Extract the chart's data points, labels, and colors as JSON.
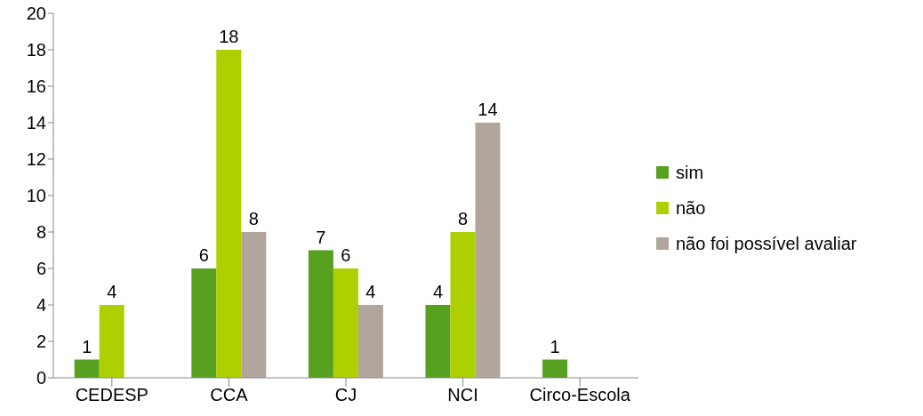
{
  "chart_data": {
    "type": "bar",
    "categories": [
      "CEDESP",
      "CCA",
      "CJ",
      "NCI",
      "Circo-Escola"
    ],
    "series": [
      {
        "name": "sim",
        "color": "#57a020",
        "values": [
          1,
          6,
          7,
          4,
          1
        ]
      },
      {
        "name": "não",
        "color": "#aecf00",
        "values": [
          4,
          18,
          6,
          8,
          null
        ]
      },
      {
        "name": "não foi possível avaliar",
        "color": "#b0a69e",
        "values": [
          null,
          8,
          4,
          14,
          null
        ]
      }
    ],
    "ylim": [
      0,
      20
    ],
    "yticks": [
      0,
      2,
      4,
      6,
      8,
      10,
      12,
      14,
      16,
      18,
      20
    ],
    "grid": false,
    "legend": "right",
    "data_labels": true
  }
}
